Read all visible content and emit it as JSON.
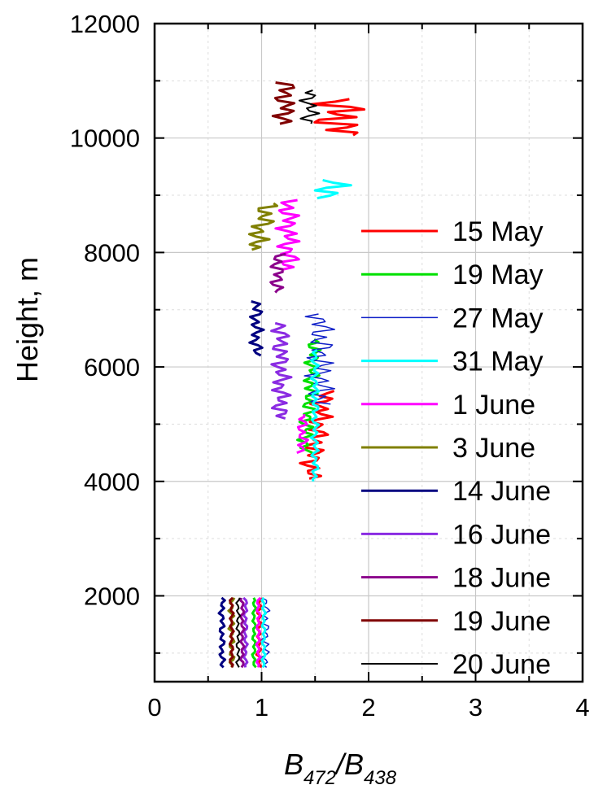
{
  "chart_data": {
    "type": "line",
    "title": "",
    "xlabel": {
      "main": "B",
      "sub1": "472",
      "slash": "/B",
      "sub2": "438"
    },
    "ylabel": "Height, m",
    "xlim": [
      0,
      4
    ],
    "ylim": [
      500,
      12000
    ],
    "x_ticks": [
      0,
      1,
      2,
      3,
      4
    ],
    "x_tick_labels": [
      "0",
      "1",
      "2",
      "3",
      "4"
    ],
    "y_ticks": [
      2000,
      4000,
      6000,
      8000,
      10000,
      12000
    ],
    "y_tick_labels": [
      "2000",
      "4000",
      "6000",
      "8000",
      "10000",
      "12000"
    ],
    "grid": true,
    "legend_position": "right",
    "series": [
      {
        "name": "15 May",
        "color": "#ff0000",
        "width": 3,
        "segments": [
          {
            "y_start": 4050,
            "y_end": 5600,
            "x_base": 1.52,
            "amp": 0.12,
            "trend": 0.15
          },
          {
            "y_start": 10050,
            "y_end": 10700,
            "x_base": 1.72,
            "amp": 0.3,
            "trend": 0.0
          },
          {
            "y_start": 750,
            "y_end": 2000,
            "x_base": 0.98,
            "amp": 0.03,
            "trend": 0.0
          }
        ]
      },
      {
        "name": "19 May",
        "color": "#00e000",
        "width": 3,
        "segments": [
          {
            "y_start": 4500,
            "y_end": 6500,
            "x_base": 1.45,
            "amp": 0.08,
            "trend": 0.1
          },
          {
            "y_start": 750,
            "y_end": 2000,
            "x_base": 0.93,
            "amp": 0.02,
            "trend": 0.0
          }
        ]
      },
      {
        "name": "27 May",
        "color": "#1020c8",
        "width": 1.5,
        "segments": [
          {
            "y_start": 5350,
            "y_end": 6950,
            "x_base": 1.55,
            "amp": 0.15,
            "trend": 0.0
          },
          {
            "y_start": 750,
            "y_end": 2000,
            "x_base": 1.04,
            "amp": 0.04,
            "trend": 0.0
          }
        ]
      },
      {
        "name": "31 May",
        "color": "#00ffff",
        "width": 3,
        "segments": [
          {
            "y_start": 4000,
            "y_end": 6300,
            "x_base": 1.5,
            "amp": 0.04,
            "trend": 0.0
          },
          {
            "y_start": 8950,
            "y_end": 9300,
            "x_base": 1.65,
            "amp": 0.2,
            "trend": 0.0
          },
          {
            "y_start": 750,
            "y_end": 2000,
            "x_base": 1.02,
            "amp": 0.02,
            "trend": 0.0
          }
        ]
      },
      {
        "name": "1 June",
        "color": "#ff00ff",
        "width": 3,
        "segments": [
          {
            "y_start": 4500,
            "y_end": 5200,
            "x_base": 1.38,
            "amp": 0.06,
            "trend": 0.0
          },
          {
            "y_start": 7700,
            "y_end": 8950,
            "x_base": 1.25,
            "amp": 0.12,
            "trend": 0.0
          },
          {
            "y_start": 750,
            "y_end": 2000,
            "x_base": 0.97,
            "amp": 0.02,
            "trend": 0.0
          }
        ]
      },
      {
        "name": "3 June",
        "color": "#808000",
        "width": 3,
        "segments": [
          {
            "y_start": 8050,
            "y_end": 8900,
            "x_base": 1.0,
            "amp": 0.12,
            "trend": 0.15
          },
          {
            "y_start": 750,
            "y_end": 2000,
            "x_base": 0.72,
            "amp": 0.03,
            "trend": 0.0
          }
        ]
      },
      {
        "name": "14 June",
        "color": "#000080",
        "width": 3,
        "segments": [
          {
            "y_start": 6200,
            "y_end": 7150,
            "x_base": 0.95,
            "amp": 0.07,
            "trend": 0.0
          },
          {
            "y_start": 750,
            "y_end": 2000,
            "x_base": 0.63,
            "amp": 0.03,
            "trend": 0.0
          }
        ]
      },
      {
        "name": "16 June",
        "color": "#8a2be2",
        "width": 3,
        "segments": [
          {
            "y_start": 5100,
            "y_end": 6800,
            "x_base": 1.18,
            "amp": 0.1,
            "trend": 0.0
          },
          {
            "y_start": 750,
            "y_end": 2000,
            "x_base": 0.85,
            "amp": 0.02,
            "trend": 0.0
          }
        ]
      },
      {
        "name": "18 June",
        "color": "#8b008b",
        "width": 3,
        "segments": [
          {
            "y_start": 7300,
            "y_end": 8000,
            "x_base": 1.15,
            "amp": 0.08,
            "trend": 0.0
          },
          {
            "y_start": 750,
            "y_end": 2000,
            "x_base": 0.82,
            "amp": 0.02,
            "trend": 0.0
          }
        ]
      },
      {
        "name": "19 June",
        "color": "#800000",
        "width": 3,
        "segments": [
          {
            "y_start": 10250,
            "y_end": 11000,
            "x_base": 1.22,
            "amp": 0.12,
            "trend": 0.0
          },
          {
            "y_start": 750,
            "y_end": 2000,
            "x_base": 0.72,
            "amp": 0.02,
            "trend": 0.0
          }
        ]
      },
      {
        "name": "20 June",
        "color": "#000000",
        "width": 2,
        "segments": [
          {
            "y_start": 10250,
            "y_end": 10850,
            "x_base": 1.45,
            "amp": 0.1,
            "trend": 0.0
          },
          {
            "y_start": 750,
            "y_end": 2000,
            "x_base": 0.78,
            "amp": 0.02,
            "trend": 0.0
          }
        ]
      }
    ]
  }
}
